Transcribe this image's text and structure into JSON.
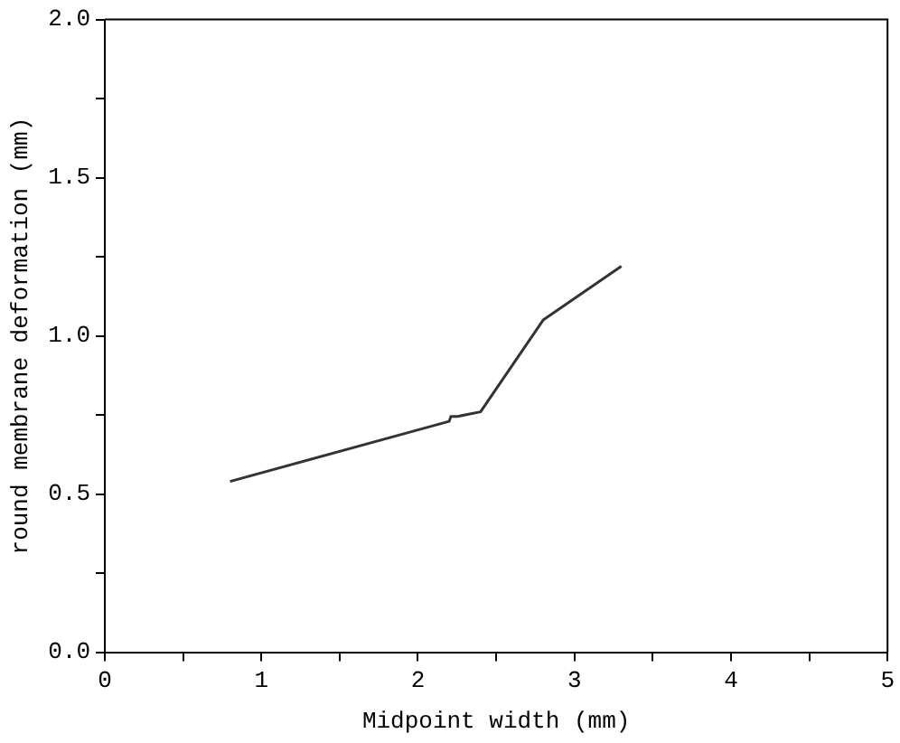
{
  "chart_data": {
    "type": "line",
    "xlabel": "Midpoint width (mm)",
    "ylabel": "round membrane deformation (mm)",
    "x": [
      0.8,
      2.2,
      2.21,
      2.25,
      2.4,
      2.8,
      3.3
    ],
    "series": [
      {
        "color": "#333333",
        "values": [
          0.54,
          0.73,
          0.745,
          0.745,
          0.76,
          1.05,
          1.22
        ]
      }
    ],
    "xlim": [
      0,
      5
    ],
    "xticks": [
      0,
      {
        "value": 0.5,
        "label": null
      },
      1,
      {
        "value": 1.5,
        "label": null
      },
      2,
      {
        "value": 2.5,
        "label": null
      },
      3,
      {
        "value": 3.5,
        "label": null
      },
      4,
      {
        "value": 4.5,
        "label": null
      },
      5
    ],
    "ylim": [
      0,
      2
    ],
    "yticks": [
      "0.0",
      {
        "value": 0.25,
        "label": null
      },
      {
        "value": 0.5,
        "label": "0.5"
      },
      {
        "value": 0.75,
        "label": null
      },
      {
        "value": 1,
        "label": "1.0"
      },
      {
        "value": 1.25,
        "label": null
      },
      {
        "value": 1.5,
        "label": "1.5"
      },
      {
        "value": 1.75,
        "label": null
      },
      {
        "value": 2,
        "label": "2.0"
      }
    ],
    "grid": false,
    "legend": false,
    "marker": "none",
    "line_style": "solid"
  }
}
